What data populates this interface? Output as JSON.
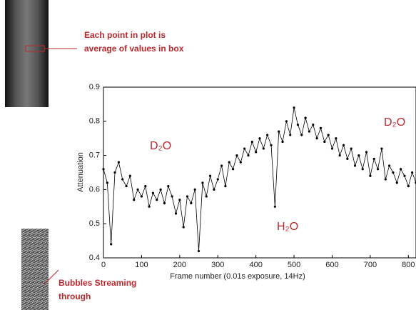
{
  "chart_data": {
    "type": "line",
    "xlabel": "Frame number (0.01s exposure, 14Hz)",
    "ylabel": "Attenuation",
    "annotations": [
      "Each point in plot is average of values in box",
      "Bubbles Streaming through",
      "D₂O",
      "H₂O",
      "D₂O"
    ],
    "xlim": [
      0,
      820
    ],
    "xticks": [
      0,
      100,
      200,
      300,
      400,
      500,
      600,
      700,
      800
    ],
    "ylim": [
      0.4,
      0.9
    ],
    "yticks": [
      0.4,
      0.5,
      0.6,
      0.7,
      0.8,
      0.9
    ],
    "x": [
      0,
      10,
      20,
      30,
      40,
      50,
      60,
      70,
      80,
      90,
      100,
      110,
      120,
      130,
      140,
      150,
      160,
      170,
      180,
      190,
      200,
      210,
      220,
      230,
      240,
      250,
      260,
      270,
      280,
      290,
      300,
      310,
      320,
      330,
      340,
      350,
      360,
      370,
      380,
      390,
      400,
      410,
      420,
      430,
      440,
      450,
      460,
      470,
      480,
      490,
      500,
      510,
      520,
      530,
      540,
      550,
      560,
      570,
      580,
      590,
      600,
      610,
      620,
      630,
      640,
      650,
      660,
      670,
      680,
      690,
      700,
      710,
      720,
      730,
      740,
      750,
      760,
      770,
      780,
      790,
      800,
      810,
      820
    ],
    "series": [
      {
        "color": "#000000",
        "values": [
          0.66,
          0.62,
          0.44,
          0.65,
          0.68,
          0.63,
          0.61,
          0.64,
          0.57,
          0.6,
          0.58,
          0.61,
          0.55,
          0.59,
          0.57,
          0.6,
          0.56,
          0.61,
          0.58,
          0.53,
          0.57,
          0.49,
          0.58,
          0.56,
          0.6,
          0.42,
          0.62,
          0.58,
          0.64,
          0.6,
          0.63,
          0.67,
          0.61,
          0.68,
          0.66,
          0.7,
          0.68,
          0.72,
          0.7,
          0.74,
          0.71,
          0.75,
          0.72,
          0.76,
          0.73,
          0.55,
          0.77,
          0.74,
          0.8,
          0.76,
          0.84,
          0.79,
          0.76,
          0.81,
          0.77,
          0.79,
          0.75,
          0.78,
          0.74,
          0.76,
          0.72,
          0.75,
          0.7,
          0.73,
          0.69,
          0.72,
          0.67,
          0.7,
          0.66,
          0.71,
          0.64,
          0.69,
          0.66,
          0.72,
          0.63,
          0.67,
          0.65,
          0.62,
          0.66,
          0.64,
          0.61,
          0.65,
          0.62
        ]
      }
    ]
  }
}
